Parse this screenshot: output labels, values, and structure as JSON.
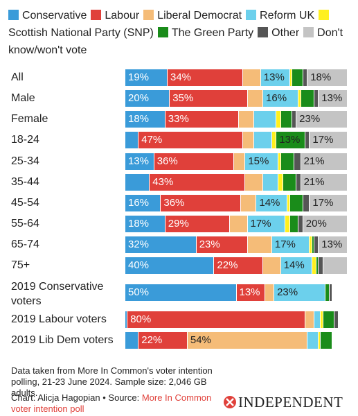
{
  "chart_data": {
    "type": "stacked-bar",
    "categories": [
      "All",
      "Male",
      "Female",
      "18-24",
      "25-34",
      "35-44",
      "45-54",
      "55-64",
      "65-74",
      "75+",
      "2019 Conservative voters",
      "2019 Labour voters",
      "2019 Lib Dem voters"
    ],
    "xlim": [
      0,
      100
    ],
    "series": [
      {
        "name": "Conservative",
        "color": "#3a9bd9",
        "values": [
          19,
          20,
          18,
          6,
          13,
          11,
          16,
          18,
          32,
          40,
          50,
          1,
          6
        ],
        "value_labels": [
          "19%",
          "20%",
          "18%",
          null,
          "13%",
          null,
          "16%",
          "18%",
          "32%",
          "40%",
          "50%",
          null,
          null
        ]
      },
      {
        "name": "Labour",
        "color": "#e0403a",
        "values": [
          34,
          35,
          33,
          47,
          36,
          43,
          36,
          29,
          23,
          22,
          13,
          80,
          22
        ],
        "value_labels": [
          "34%",
          "35%",
          "33%",
          "47%",
          "36%",
          "43%",
          "36%",
          "29%",
          "23%",
          "22%",
          "13%",
          "80%",
          "22%"
        ]
      },
      {
        "name": "Liberal Democrat",
        "color": "#f5bc78",
        "values": [
          8,
          7,
          7,
          5,
          5,
          8,
          7,
          8,
          11,
          8,
          4,
          4,
          54
        ],
        "value_labels": [
          null,
          null,
          null,
          null,
          null,
          null,
          null,
          null,
          null,
          null,
          null,
          null,
          "54%"
        ]
      },
      {
        "name": "Reform UK",
        "color": "#6cd0ec",
        "values": [
          13,
          16,
          10,
          8,
          15,
          7,
          14,
          17,
          17,
          14,
          23,
          3,
          5
        ],
        "value_labels": [
          "13%",
          "16%",
          null,
          null,
          "15%",
          null,
          "14%",
          "17%",
          "17%",
          "14%",
          "23%",
          null,
          null
        ]
      },
      {
        "name": "Scottish National Party (SNP)",
        "color": "#fff01f",
        "values": [
          1,
          1,
          2,
          2,
          1,
          2,
          1,
          2,
          1,
          2,
          null,
          1,
          1
        ]
      },
      {
        "name": "The Green Party",
        "color": "#1a8c1a",
        "values": [
          5,
          6,
          5,
          13,
          6,
          6,
          6,
          4,
          1,
          1,
          2,
          5,
          5
        ],
        "value_labels": [
          null,
          null,
          null,
          "13%",
          null,
          null,
          null,
          null,
          null,
          null,
          null,
          null,
          null
        ]
      },
      {
        "name": "Other",
        "color": "#555555",
        "values": [
          2,
          2,
          2,
          2,
          3,
          2,
          3,
          2,
          2,
          2,
          1,
          2,
          null
        ]
      },
      {
        "name": "Don't know/won't vote",
        "color": "#c4c4c4",
        "values": [
          18,
          13,
          23,
          17,
          21,
          21,
          17,
          20,
          13,
          11,
          null,
          null,
          null
        ],
        "value_labels": [
          "18%",
          "13%",
          "23%",
          "17%",
          "21%",
          "21%",
          "17%",
          "20%",
          "13%",
          null,
          null,
          null,
          null
        ]
      }
    ]
  },
  "note": "Data taken from More In Common's voter intention polling, 21-23 June 2024. Sample size: 2,046 GB adults.",
  "source": {
    "prefix": "Chart: Alicja Hagopian • Source: ",
    "link": "More In Common voter intention poll"
  },
  "logo": "INDEPENDENT"
}
